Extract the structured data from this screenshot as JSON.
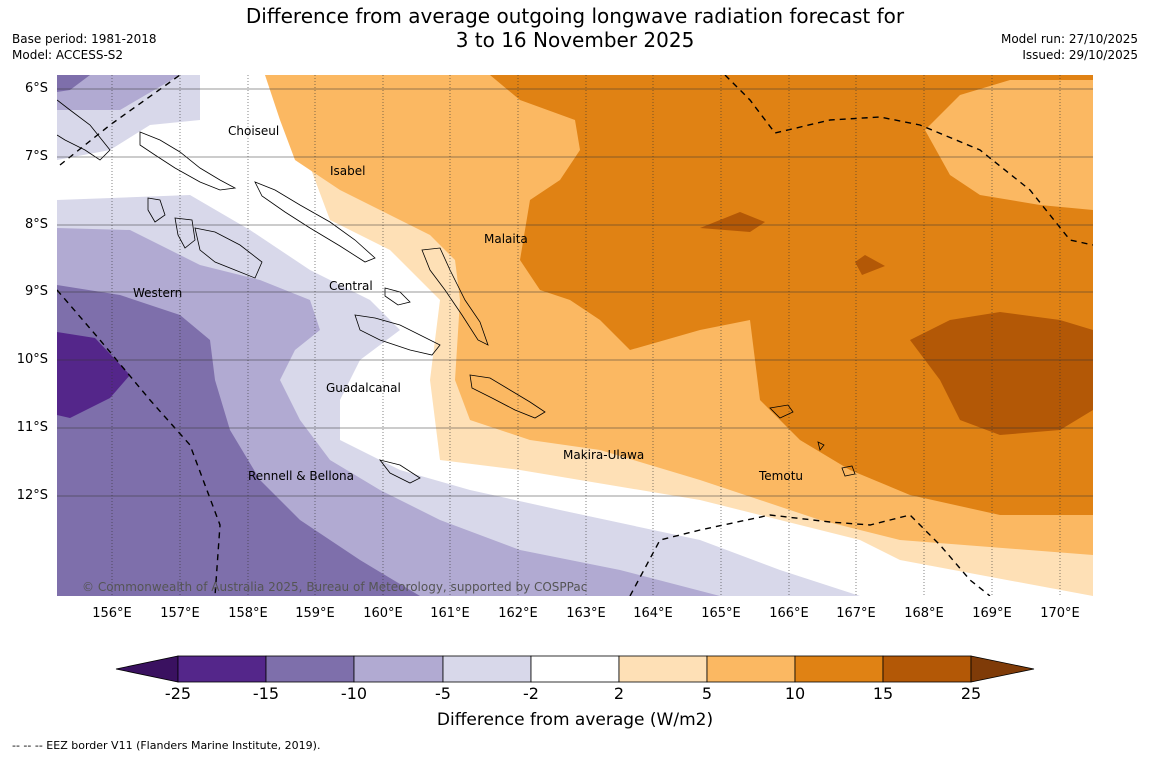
{
  "title": {
    "line1": "Difference from average outgoing longwave radiation forecast for",
    "line2": "3 to 16 November 2025"
  },
  "meta": {
    "base_period": "Base period: 1981-2018",
    "model": "Model: ACCESS-S2",
    "model_run": "Model run: 27/10/2025",
    "issued": "Issued: 29/10/2025"
  },
  "axes": {
    "lon_labels": [
      "156°E",
      "157°E",
      "158°E",
      "159°E",
      "160°E",
      "161°E",
      "162°E",
      "163°E",
      "164°E",
      "165°E",
      "166°E",
      "167°E",
      "168°E",
      "169°E",
      "170°E"
    ],
    "lat_labels": [
      "6°S",
      "7°S",
      "8°S",
      "9°S",
      "10°S",
      "11°S",
      "12°S"
    ]
  },
  "regions": [
    "Choiseul",
    "Isabel",
    "Malaita",
    "Western",
    "Central",
    "Guadalcanal",
    "Makira-Ulawa",
    "Rennell & Bellona",
    "Temotu"
  ],
  "copyright": "© Commonwealth of Australia 2025, Bureau of Meteorology, supported by COSPPac",
  "colorbar": {
    "ticks": [
      "-25",
      "-15",
      "-10",
      "-5",
      "-2",
      "2",
      "5",
      "10",
      "15",
      "25"
    ],
    "colors": [
      "#3a1160",
      "#54268a",
      "#7e6fab",
      "#b1aad2",
      "#d8d8ea",
      "#ffffff",
      "#fee0b6",
      "#fbb862",
      "#e08214",
      "#b35806",
      "#7f3b08"
    ],
    "label": "Difference from average (W/m2)"
  },
  "legend": {
    "eez": "--  --  -- EEZ border V11 (Flanders Marine Institute, 2019)."
  }
}
